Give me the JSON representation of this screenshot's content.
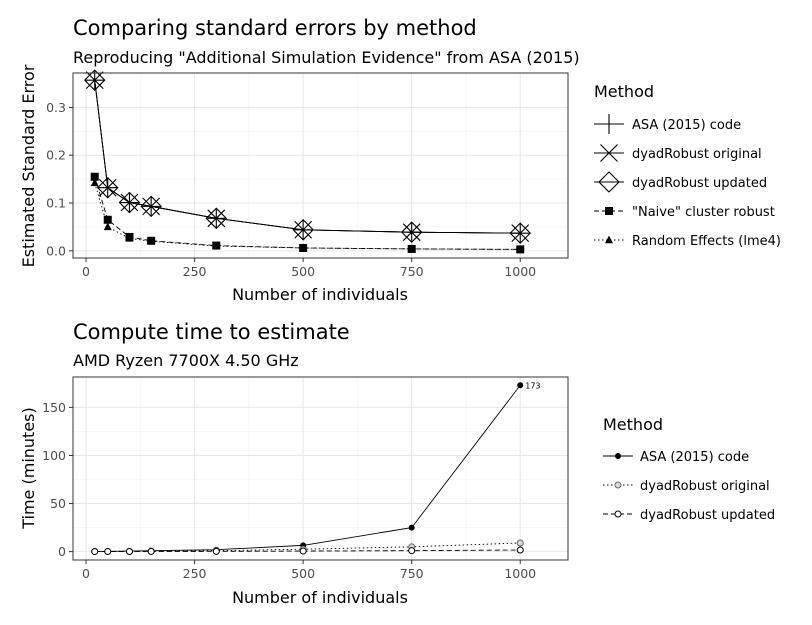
{
  "chart_data": [
    {
      "type": "line",
      "title": "Comparing standard errors by method",
      "subtitle": "Reproducing \"Additional Simulation Evidence\" from ASA (2015)",
      "xlabel": "Number of individuals",
      "ylabel": "Estimated Standard Error",
      "xlim": [
        0,
        1000
      ],
      "ylim": [
        0,
        0.35
      ],
      "xticks": [
        0,
        250,
        500,
        750,
        1000
      ],
      "yticks": [
        0.0,
        0.1,
        0.2,
        0.3
      ],
      "xtick_labels": [
        "0",
        "250",
        "500",
        "750",
        "1000"
      ],
      "ytick_labels": [
        "0.0",
        "0.1",
        "0.2",
        "0.3"
      ],
      "grid": true,
      "legend": {
        "title": "Method",
        "position": "right"
      },
      "x": [
        20,
        50,
        100,
        150,
        300,
        500,
        750,
        1000
      ],
      "series": [
        {
          "name": "ASA (2015) code",
          "shape": "plus",
          "line": "solid",
          "values": [
            0.357,
            0.132,
            0.101,
            0.093,
            0.068,
            0.044,
            0.039,
            0.037
          ]
        },
        {
          "name": "dyadRobust original",
          "shape": "cross",
          "line": "solid",
          "values": [
            0.357,
            0.132,
            0.101,
            0.093,
            0.068,
            0.044,
            0.039,
            0.037
          ]
        },
        {
          "name": "dyadRobust updated",
          "shape": "diamond",
          "line": "solid",
          "values": [
            0.357,
            0.132,
            0.101,
            0.093,
            0.068,
            0.044,
            0.039,
            0.037
          ]
        },
        {
          "name": "\"Naive\" cluster robust",
          "shape": "square",
          "line": "dashed",
          "values": [
            0.155,
            0.065,
            0.029,
            0.021,
            0.011,
            0.006,
            0.004,
            0.003
          ]
        },
        {
          "name": "Random Effects (lme4)",
          "shape": "triangle",
          "line": "dotted",
          "values": [
            0.142,
            0.05,
            0.026,
            0.02,
            0.01,
            0.006,
            0.004,
            0.003
          ]
        }
      ]
    },
    {
      "type": "line",
      "title": "Compute time to estimate",
      "subtitle": "AMD Ryzen 7700X 4.50 GHz",
      "xlabel": "Number of individuals",
      "ylabel": "Time (minutes)",
      "xlim": [
        0,
        1000
      ],
      "ylim": [
        0,
        173
      ],
      "xticks": [
        0,
        250,
        500,
        750,
        1000
      ],
      "yticks": [
        0,
        50,
        100,
        150
      ],
      "xtick_labels": [
        "0",
        "250",
        "500",
        "750",
        "1000"
      ],
      "ytick_labels": [
        "0",
        "50",
        "100",
        "150"
      ],
      "grid": true,
      "legend": {
        "title": "Method",
        "position": "right"
      },
      "annotation": {
        "text": "173",
        "x": 1000,
        "y": 173
      },
      "x": [
        20,
        50,
        100,
        150,
        300,
        500,
        750,
        1000
      ],
      "series": [
        {
          "name": "ASA (2015) code",
          "shape": "filled-circle",
          "line": "solid",
          "values": [
            0.2,
            0.3,
            0.6,
            1.0,
            2.0,
            6.5,
            25,
            173
          ]
        },
        {
          "name": "dyadRobust original",
          "shape": "grey-circle",
          "line": "dotted",
          "values": [
            0.1,
            0.2,
            0.3,
            0.5,
            1.0,
            2.5,
            5.0,
            9.0
          ]
        },
        {
          "name": "dyadRobust updated",
          "shape": "open-circle",
          "line": "dashed",
          "values": [
            0.05,
            0.1,
            0.15,
            0.2,
            0.3,
            0.6,
            1.0,
            1.7
          ]
        }
      ]
    }
  ]
}
